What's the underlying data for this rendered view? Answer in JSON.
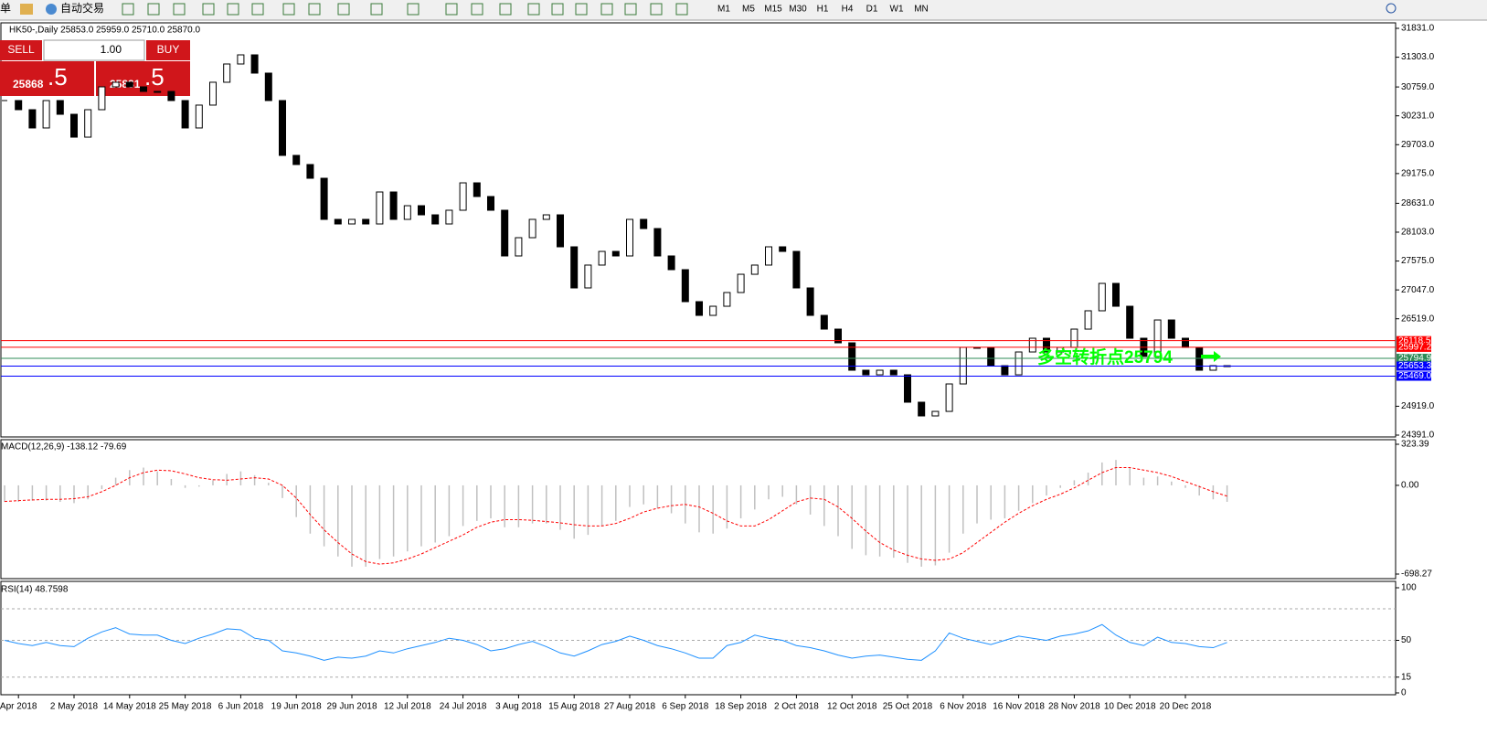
{
  "toolbar": {
    "items": [
      "单",
      "自动交易"
    ],
    "timeframes": [
      "M1",
      "M5",
      "M15",
      "M30",
      "H1",
      "H4",
      "D1",
      "W1",
      "MN"
    ]
  },
  "trade_panel": {
    "sell": "SELL",
    "lot": "1.00",
    "buy": "BUY",
    "bid_big": "25868",
    "bid_small": ".5",
    "ask_big": "25881",
    "ask_small": ".5"
  },
  "chart_data": [
    {
      "type": "candlestick",
      "title": "HK50-,Daily  25853.0 25959.0 25710.0 25870.0",
      "categories": [
        null,
        "Apr 2018",
        null,
        null,
        null,
        "2 May 2018",
        null,
        null,
        null,
        "14 May 2018",
        null,
        null,
        null,
        "25 May 2018",
        null,
        null,
        null,
        "6 Jun 2018",
        null,
        null,
        null,
        "19 Jun 2018",
        null,
        null,
        null,
        "29 Jun 2018",
        null,
        null,
        null,
        "12 Jul 2018",
        null,
        null,
        null,
        "24 Jul 2018",
        null,
        null,
        null,
        "3 Aug 2018",
        null,
        null,
        null,
        "15 Aug 2018",
        null,
        null,
        null,
        "27 Aug 2018",
        null,
        null,
        null,
        "6 Sep 2018",
        null,
        null,
        null,
        "18 Sep 2018",
        null,
        null,
        null,
        "2 Oct 2018",
        null,
        null,
        null,
        "12 Oct 2018",
        null,
        null,
        null,
        "25 Oct 2018",
        null,
        null,
        null,
        "6 Nov 2018",
        null,
        null,
        null,
        "16 Nov 2018",
        null,
        null,
        null,
        "28 Nov 2018",
        null,
        null,
        null,
        "10 Dec 2018",
        null,
        null,
        null,
        "20 Dec 2018",
        null,
        null,
        null
      ],
      "values": [
        30510,
        30343,
        30009,
        30510,
        30259,
        29841,
        30343,
        30761,
        30845,
        30761,
        30677,
        30677,
        30510,
        30009,
        30427,
        30845,
        31179,
        31346,
        31012,
        30510,
        29507,
        29340,
        29089,
        28337,
        28253,
        28337,
        28253,
        28838,
        28337,
        28587,
        28420,
        28253,
        28504,
        29005,
        28755,
        28504,
        27668,
        28002,
        28337,
        28420,
        27835,
        27083,
        27501,
        27751,
        27668,
        28337,
        28169,
        27668,
        27417,
        26832,
        26581,
        26748,
        26999,
        27333,
        27501,
        27835,
        27751,
        27083,
        26581,
        26330,
        26079,
        25578,
        25494,
        25578,
        25494,
        24993,
        24742,
        24825,
        25327,
        25996,
        25996,
        25661,
        25494,
        25912,
        26163,
        25912,
        25996,
        26330,
        26665,
        27166,
        26748,
        26163,
        25829,
        26497,
        26163,
        25996,
        25578,
        25661,
        25661
      ],
      "ylim": [
        24391,
        31831
      ],
      "yticks": [
        {
          "value": 31831,
          "label": "31831.0"
        },
        {
          "value": 31303,
          "label": "31303.0"
        },
        {
          "value": 30759,
          "label": "30759.0"
        },
        {
          "value": 30231,
          "label": "30231.0"
        },
        {
          "value": 29703,
          "label": "29703.0"
        },
        {
          "value": 29175,
          "label": "29175.0"
        },
        {
          "value": 28631,
          "label": "28631.0"
        },
        {
          "value": 28103,
          "label": "28103.0"
        },
        {
          "value": 27575,
          "label": "27575.0"
        },
        {
          "value": 27047,
          "label": "27047.0"
        },
        {
          "value": 26519,
          "label": "26519.0"
        },
        {
          "value": 24919,
          "label": "24919.0"
        },
        {
          "value": 24391,
          "label": "24391.0"
        }
      ],
      "levels": [
        {
          "value": 26118.5,
          "label": "26118.5",
          "color": "#ff0000"
        },
        {
          "value": 25997.2,
          "label": "25997.2",
          "color": "#ff0000"
        },
        {
          "value": 25794.9,
          "label": "25794.9",
          "color": "#2e8b57"
        },
        {
          "value": 25653.3,
          "label": "25653.3",
          "color": "#0000ff"
        },
        {
          "value": 25469,
          "label": "25469.0",
          "color": "#0000ff"
        }
      ],
      "annotation": "多空转折点25794",
      "annotation_color": "#00ff00"
    },
    {
      "type": "macd",
      "title": "MACD(12,26,9) -138.12 -79.69",
      "values": [
        -130,
        -130,
        -120,
        -120,
        -130,
        -140,
        -110,
        -30,
        60,
        120,
        140,
        110,
        50,
        -20,
        -10,
        40,
        90,
        110,
        80,
        20,
        -100,
        -250,
        -380,
        -480,
        -560,
        -640,
        -640,
        -580,
        -560,
        -520,
        -480,
        -450,
        -400,
        -320,
        -280,
        -260,
        -330,
        -330,
        -300,
        -300,
        -350,
        -420,
        -390,
        -320,
        -280,
        -170,
        -150,
        -180,
        -220,
        -300,
        -370,
        -380,
        -340,
        -260,
        -190,
        -110,
        -90,
        -150,
        -230,
        -320,
        -400,
        -500,
        -550,
        -560,
        -570,
        -610,
        -640,
        -630,
        -530,
        -380,
        -300,
        -270,
        -260,
        -200,
        -140,
        -80,
        -20,
        40,
        100,
        180,
        200,
        140,
        60,
        70,
        30,
        -20,
        -80,
        -110,
        -130
      ],
      "signal": [
        -127,
        -120,
        -115,
        -110,
        -110,
        -105,
        -90,
        -50,
        0,
        60,
        100,
        120,
        115,
        90,
        60,
        45,
        40,
        50,
        60,
        50,
        0,
        -100,
        -230,
        -350,
        -450,
        -540,
        -600,
        -620,
        -610,
        -580,
        -540,
        -490,
        -440,
        -390,
        -330,
        -290,
        -270,
        -270,
        -275,
        -285,
        -295,
        -310,
        -320,
        -320,
        -300,
        -260,
        -210,
        -180,
        -160,
        -150,
        -170,
        -220,
        -280,
        -320,
        -320,
        -270,
        -200,
        -130,
        -100,
        -110,
        -170,
        -260,
        -360,
        -450,
        -510,
        -550,
        -580,
        -590,
        -580,
        -530,
        -450,
        -370,
        -290,
        -220,
        -160,
        -110,
        -70,
        -20,
        40,
        100,
        140,
        140,
        120,
        100,
        70,
        30,
        -10,
        -50,
        -85
      ],
      "color": "#c0c0c0",
      "signal_color": "#ff0000",
      "ylim": [
        -698.27,
        323.39
      ],
      "yticks": [
        323.39,
        {
          "value": 0,
          "label": "0.00"
        },
        -698.27
      ]
    },
    {
      "type": "line",
      "title": "RSI(14) 48.7598",
      "values": [
        50,
        47,
        45,
        48,
        45,
        44,
        52,
        58,
        62,
        56,
        55,
        55,
        50,
        47,
        52,
        56,
        61,
        60,
        52,
        50,
        40,
        38,
        35,
        31,
        34,
        33,
        35,
        40,
        38,
        42,
        45,
        48,
        52,
        50,
        46,
        40,
        42,
        46,
        49,
        44,
        38,
        35,
        40,
        46,
        49,
        54,
        50,
        45,
        42,
        38,
        33,
        33,
        45,
        48,
        55,
        52,
        50,
        45,
        43,
        40,
        36,
        33,
        35,
        36,
        34,
        32,
        31,
        40,
        57,
        52,
        49,
        46,
        50,
        54,
        52,
        50,
        54,
        56,
        59,
        65,
        55,
        48,
        45,
        53,
        48,
        47,
        44,
        43,
        48
      ],
      "color": "#1e90ff",
      "ylim": [
        0,
        100
      ],
      "yticks": [
        100,
        50,
        15,
        0
      ],
      "levels": [
        80,
        50,
        15
      ]
    }
  ]
}
